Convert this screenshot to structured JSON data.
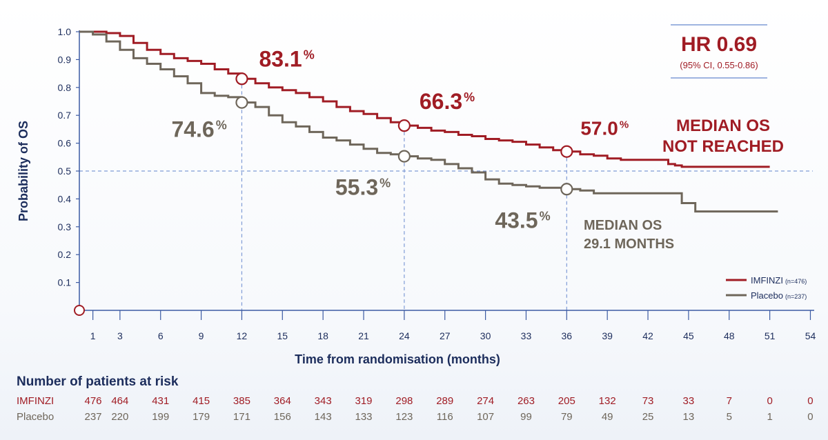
{
  "chart_data": {
    "type": "line",
    "xlabel": "Time from randomisation (months)",
    "ylabel": "Probability of OS",
    "xticks": [
      1,
      3,
      6,
      9,
      12,
      15,
      18,
      21,
      24,
      27,
      30,
      33,
      36,
      39,
      42,
      45,
      48,
      51,
      54
    ],
    "yticks": [
      "0.1",
      "0.2",
      "0.3",
      "0.4",
      "0.5",
      "0.6",
      "0.7",
      "0.8",
      "0.9",
      "1.0"
    ],
    "xlim": [
      0,
      54
    ],
    "ylim": [
      0,
      1
    ],
    "legend_position": "bottom-right",
    "series": [
      {
        "name": "IMFINZI",
        "n_label": "(n=476)",
        "color": "#a01c24",
        "points": [
          [
            0,
            1.0
          ],
          [
            1,
            1.0
          ],
          [
            2,
            0.995
          ],
          [
            3,
            0.985
          ],
          [
            4,
            0.96
          ],
          [
            5,
            0.935
          ],
          [
            6,
            0.92
          ],
          [
            7,
            0.905
          ],
          [
            8,
            0.895
          ],
          [
            9,
            0.885
          ],
          [
            10,
            0.865
          ],
          [
            11,
            0.85
          ],
          [
            12,
            0.831
          ],
          [
            13,
            0.815
          ],
          [
            14,
            0.8
          ],
          [
            15,
            0.79
          ],
          [
            16,
            0.78
          ],
          [
            17,
            0.765
          ],
          [
            18,
            0.75
          ],
          [
            19,
            0.73
          ],
          [
            20,
            0.715
          ],
          [
            21,
            0.705
          ],
          [
            22,
            0.69
          ],
          [
            23,
            0.675
          ],
          [
            24,
            0.663
          ],
          [
            25,
            0.655
          ],
          [
            26,
            0.645
          ],
          [
            27,
            0.64
          ],
          [
            28,
            0.63
          ],
          [
            29,
            0.625
          ],
          [
            30,
            0.615
          ],
          [
            31,
            0.61
          ],
          [
            32,
            0.605
          ],
          [
            33,
            0.595
          ],
          [
            34,
            0.585
          ],
          [
            35,
            0.575
          ],
          [
            36,
            0.57
          ],
          [
            37,
            0.56
          ],
          [
            38,
            0.555
          ],
          [
            39,
            0.545
          ],
          [
            40,
            0.54
          ],
          [
            41,
            0.54
          ],
          [
            42,
            0.54
          ],
          [
            43,
            0.54
          ],
          [
            43.5,
            0.525
          ],
          [
            44,
            0.52
          ],
          [
            44.5,
            0.515
          ],
          [
            47,
            0.515
          ],
          [
            51,
            0.515
          ]
        ]
      },
      {
        "name": "Placebo",
        "n_label": "(n=237)",
        "color": "#6e665a",
        "points": [
          [
            0,
            1.0
          ],
          [
            1,
            0.99
          ],
          [
            2,
            0.965
          ],
          [
            3,
            0.935
          ],
          [
            4,
            0.905
          ],
          [
            5,
            0.885
          ],
          [
            6,
            0.865
          ],
          [
            7,
            0.84
          ],
          [
            8,
            0.815
          ],
          [
            9,
            0.78
          ],
          [
            10,
            0.77
          ],
          [
            11,
            0.765
          ],
          [
            12,
            0.746
          ],
          [
            13,
            0.73
          ],
          [
            14,
            0.7
          ],
          [
            15,
            0.675
          ],
          [
            16,
            0.66
          ],
          [
            17,
            0.64
          ],
          [
            18,
            0.62
          ],
          [
            19,
            0.61
          ],
          [
            20,
            0.595
          ],
          [
            21,
            0.58
          ],
          [
            22,
            0.565
          ],
          [
            23,
            0.56
          ],
          [
            24,
            0.553
          ],
          [
            25,
            0.545
          ],
          [
            26,
            0.54
          ],
          [
            27,
            0.525
          ],
          [
            28,
            0.51
          ],
          [
            29,
            0.495
          ],
          [
            30,
            0.47
          ],
          [
            31,
            0.455
          ],
          [
            32,
            0.45
          ],
          [
            33,
            0.445
          ],
          [
            34,
            0.44
          ],
          [
            35,
            0.44
          ],
          [
            36,
            0.435
          ],
          [
            37,
            0.43
          ],
          [
            38,
            0.42
          ],
          [
            41,
            0.42
          ],
          [
            44.5,
            0.42
          ],
          [
            44.5,
            0.385
          ],
          [
            45.5,
            0.385
          ],
          [
            45.5,
            0.355
          ],
          [
            51,
            0.355
          ],
          [
            51.6,
            0.355
          ]
        ]
      }
    ],
    "markers": [
      {
        "series": 0,
        "x": 12,
        "y": 0.831,
        "label": "83.1",
        "sup": "%"
      },
      {
        "series": 0,
        "x": 24,
        "y": 0.663,
        "label": "66.3",
        "sup": "%"
      },
      {
        "series": 0,
        "x": 36,
        "y": 0.57,
        "label": "57.0",
        "sup": "%"
      },
      {
        "series": 1,
        "x": 12,
        "y": 0.746,
        "label": "74.6",
        "sup": "%"
      },
      {
        "series": 1,
        "x": 24,
        "y": 0.553,
        "label": "55.3",
        "sup": "%"
      },
      {
        "series": 1,
        "x": 36,
        "y": 0.435,
        "label": "43.5",
        "sup": "%"
      }
    ],
    "median_reference_y": 0.5,
    "reference_vertical_x": [
      12,
      24,
      36
    ],
    "hr_box": {
      "title": "HR 0.69",
      "subtitle": "(95% CI, 0.55-0.86)"
    },
    "annotations": {
      "imfinzi_median": [
        "MEDIAN OS",
        "NOT REACHED"
      ],
      "placebo_median": [
        "MEDIAN OS",
        "29.1 MONTHS"
      ]
    },
    "risk_table": {
      "title": "Number of patients at risk",
      "rows": [
        {
          "label": "IMFINZI",
          "values": [
            476,
            464,
            431,
            415,
            385,
            364,
            343,
            319,
            298,
            289,
            274,
            263,
            205,
            132,
            73,
            33,
            7,
            0,
            0
          ]
        },
        {
          "label": "Placebo",
          "values": [
            237,
            220,
            199,
            179,
            171,
            156,
            143,
            133,
            123,
            116,
            107,
            99,
            79,
            49,
            25,
            13,
            5,
            1,
            0
          ]
        }
      ]
    },
    "colors": {
      "axis": "#3b5aa3",
      "axis_text": "#1c2d5c",
      "dash": "#7f9bd6",
      "imfinzi": "#a01c24",
      "placebo": "#6e665a"
    }
  }
}
